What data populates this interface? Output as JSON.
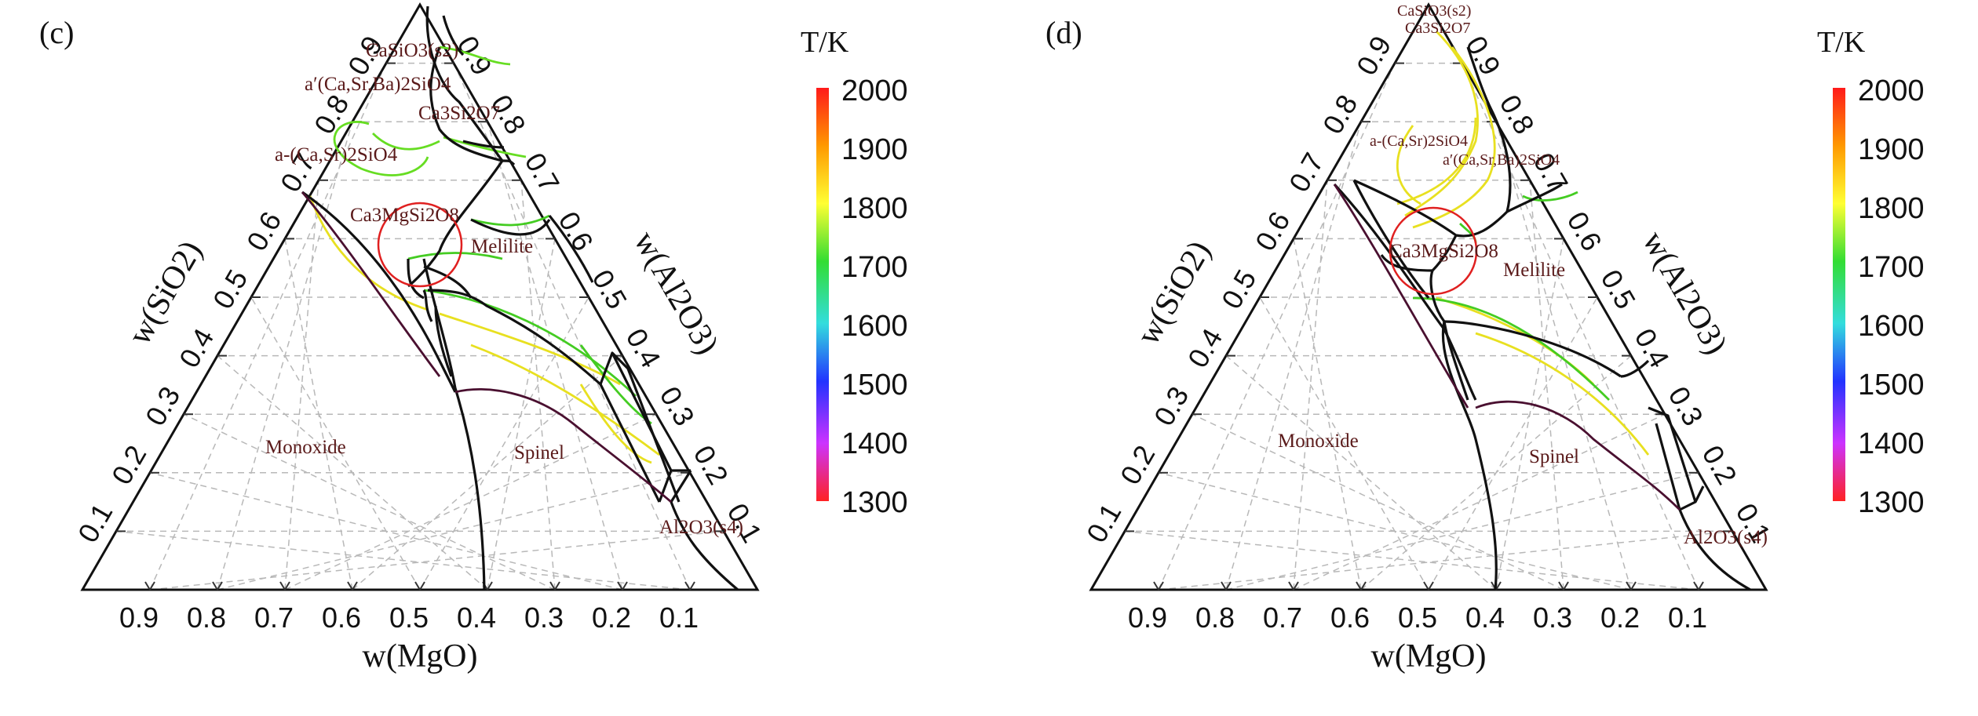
{
  "panels": [
    {
      "label": "(c)",
      "axis_mgo": "w(MgO)",
      "axis_sio2": "w(SiO2)",
      "axis_al2o3": "w(Al2O3)",
      "ticks": [
        "0.1",
        "0.2",
        "0.3",
        "0.4",
        "0.5",
        "0.6",
        "0.7",
        "0.8",
        "0.9"
      ],
      "phases": {
        "casio3": "CaSiO3(s2)",
        "a_prime": "a′(Ca,Sr,Ba)2SiO4",
        "ca3si2o7": "Ca3Si2O7",
        "a_ca_sr": "a-(Ca,Sr)2SiO4",
        "merwinite": "Ca3MgSi2O8",
        "melilite": "Melilite",
        "monoxide": "Monoxide",
        "spinel": "Spinel",
        "al2o3": "Al2O3(s4)"
      }
    },
    {
      "label": "(d)",
      "axis_mgo": "w(MgO)",
      "axis_sio2": "w(SiO2)",
      "axis_al2o3": "w(Al2O3)",
      "ticks": [
        "0.1",
        "0.2",
        "0.3",
        "0.4",
        "0.5",
        "0.6",
        "0.7",
        "0.8",
        "0.9"
      ],
      "phases": {
        "casio3": "CaSiO3(s2)",
        "ca3si2o7": "Ca3Si2O7",
        "a_ca_sr": "a-(Ca,Sr)2SiO4",
        "a_prime": "a′(Ca,Sr,Ba)2SiO4",
        "merwinite": "Ca3MgSi2O8",
        "melilite": "Melilite",
        "monoxide": "Monoxide",
        "spinel": "Spinel",
        "al2o3": "Al2O3(s4)"
      }
    }
  ],
  "colorbar": {
    "title": "T/K",
    "ticks": [
      "2000",
      "1900",
      "1800",
      "1700",
      "1600",
      "1500",
      "1400",
      "1300"
    ],
    "colors": [
      "#ff1a1a",
      "#ff9900",
      "#ffff33",
      "#33dd33",
      "#33dddd",
      "#2233ff",
      "#cc33ff",
      "#ff2222"
    ]
  },
  "isotherm_colors": {
    "c1900": "#e8e020",
    "c1800": "#66dd22",
    "c1700": "#22cc22",
    "c1600": "#33ccbb",
    "hot": "#cc3333"
  }
}
